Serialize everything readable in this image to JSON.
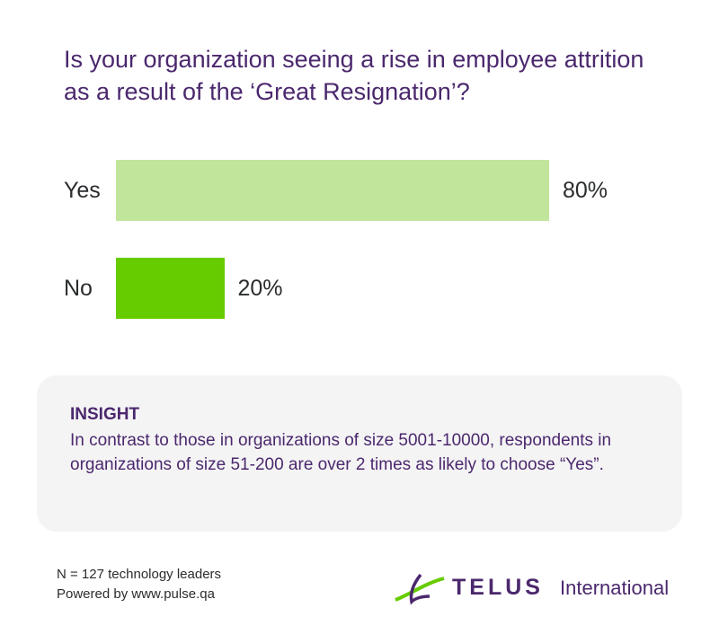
{
  "chart_data": {
    "type": "bar",
    "orientation": "horizontal",
    "title": "Is your organization seeing a rise in employee attrition as a result of the ‘Great Resignation’?",
    "categories": [
      "Yes",
      "No"
    ],
    "values": [
      80,
      20
    ],
    "value_labels": [
      "80%",
      "20%"
    ],
    "colors": [
      "#c2e59c",
      "#66cc00"
    ]
  },
  "insight": {
    "heading": "INSIGHT",
    "text": "In contrast to those in organizations of size 5001-10000, respondents in organizations of size 51-200 are over 2 times as likely to choose “Yes”."
  },
  "footer": {
    "sample": "N = 127 technology leaders",
    "powered_by": "Powered by www.pulse.qa"
  },
  "logo": {
    "name": "TELUS",
    "suffix": "International"
  }
}
